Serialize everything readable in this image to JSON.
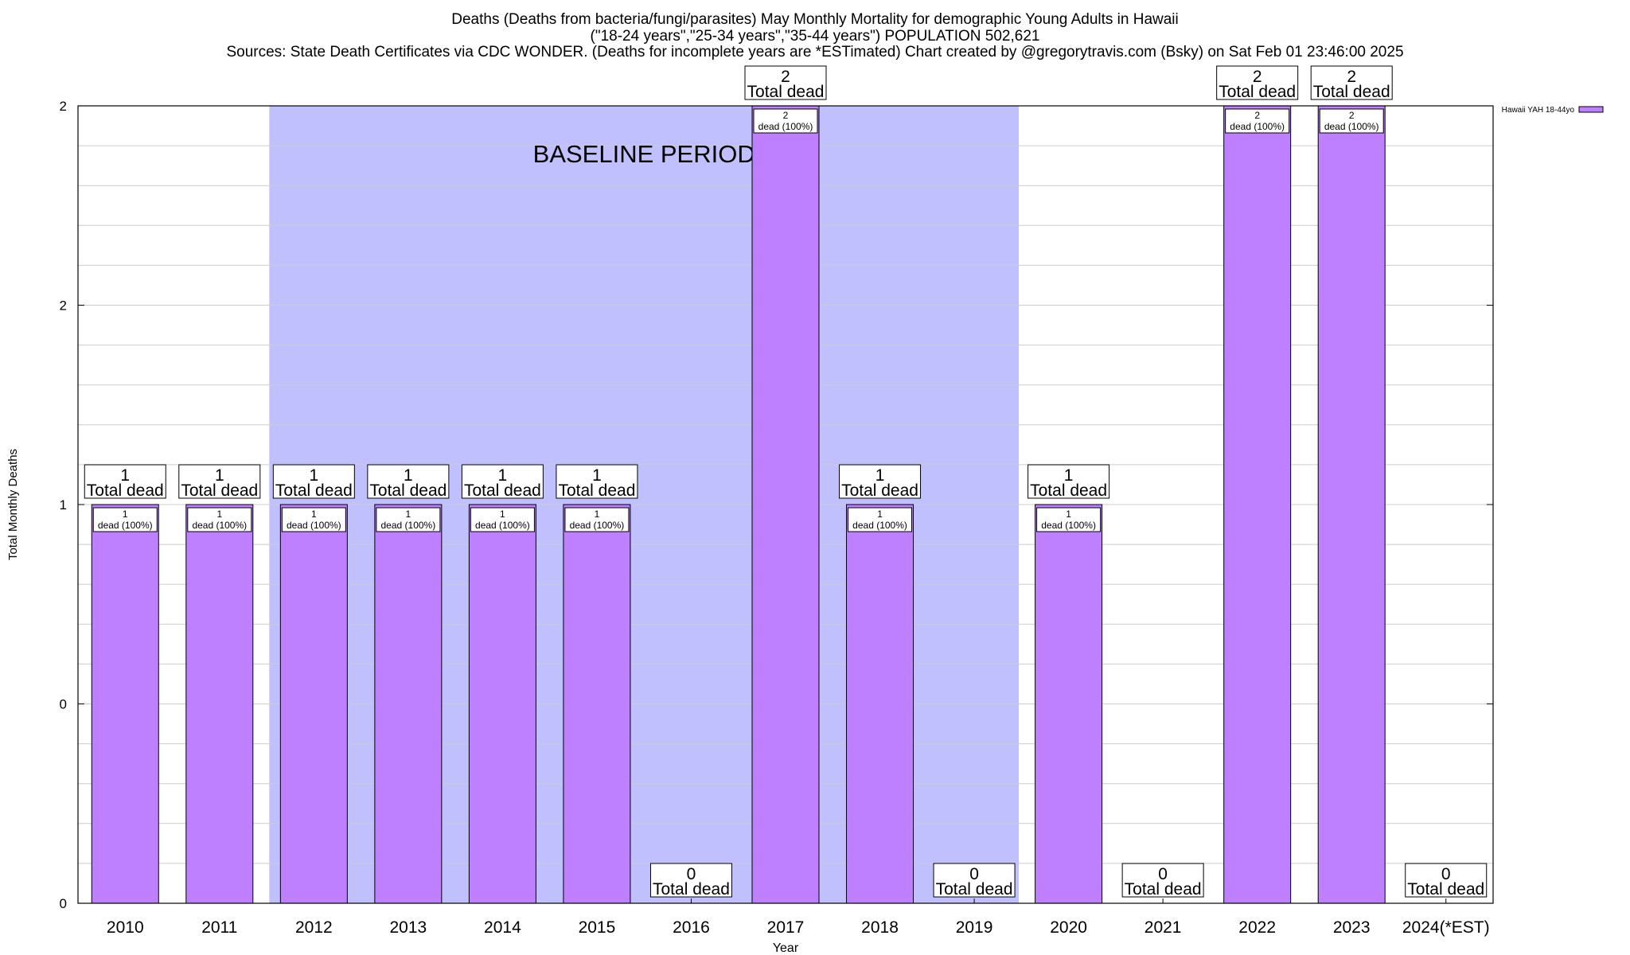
{
  "title_lines": [
    "Deaths (Deaths from bacteria/fungi/parasites) May Monthly Mortality for demographic Young Adults in Hawaii",
    "(\"18-24 years\",\"25-34 years\",\"35-44 years\") POPULATION 502,621",
    "Sources: State Death Certificates via CDC WONDER. (Deaths for incomplete years are *ESTimated)               Chart created by @gregorytravis.com (Bsky) on Sat Feb 01 23:46:00 2025"
  ],
  "chart_data": {
    "type": "bar",
    "categories": [
      "2010",
      "2011",
      "2012",
      "2013",
      "2014",
      "2015",
      "2016",
      "2017",
      "2018",
      "2019",
      "2020",
      "2021",
      "2022",
      "2023",
      "2024(*EST)"
    ],
    "series": [
      {
        "name": "Hawaii YAH 18-44yo",
        "values": [
          1,
          1,
          1,
          1,
          1,
          1,
          0,
          2,
          1,
          0,
          1,
          0,
          2,
          2,
          0
        ],
        "color": "#bf80ff"
      }
    ],
    "total_label_suffix": "Total dead",
    "inner_label_suffix": "dead (100%)",
    "xlabel": "Year",
    "ylabel": "Total Monthly Deaths",
    "ylim": [
      0,
      2
    ],
    "y_tick_labels": [
      "0",
      "0",
      "1",
      "2",
      "2"
    ],
    "y_tick_values": [
      0,
      0.5,
      1,
      1.5,
      2
    ],
    "baseline_period": {
      "label": "BASELINE PERIOD",
      "from_category": "2012",
      "to_category": "2019",
      "color": "#c0c0ff"
    },
    "grid": true,
    "legend_position": "top-right"
  }
}
